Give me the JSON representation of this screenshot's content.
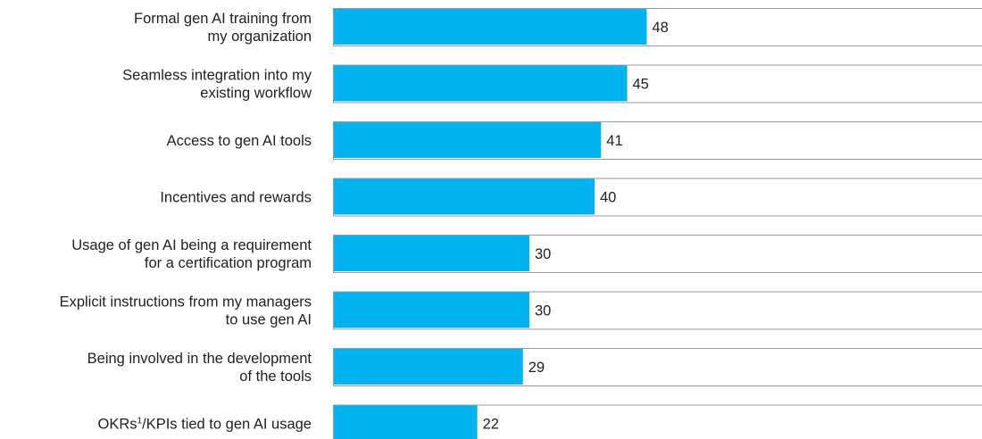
{
  "colors": {
    "bar": "#00b3ef",
    "track": "#9a9a9a",
    "text": "#222222"
  },
  "chart_data": {
    "type": "bar",
    "orientation": "horizontal",
    "title": "",
    "xlabel": "",
    "ylabel": "",
    "xlim": [
      0,
      100
    ],
    "grid": false,
    "categories": [
      [
        "Formal gen AI training from",
        "my organization"
      ],
      [
        "Seamless integration into my",
        "existing workflow"
      ],
      [
        "Access to gen AI tools"
      ],
      [
        "Incentives and rewards"
      ],
      [
        "Usage of gen AI being a requirement",
        "for a certification program"
      ],
      [
        "Explicit instructions from my managers",
        "to use gen AI"
      ],
      [
        "Being involved in the development",
        "of the tools"
      ],
      [
        "OKRs¹/KPIs tied to gen AI usage"
      ]
    ],
    "values": [
      48,
      45,
      41,
      40,
      30,
      30,
      29,
      22
    ],
    "value_labels": [
      "48",
      "45",
      "41",
      "40",
      "30",
      "30",
      "29",
      "22"
    ]
  }
}
